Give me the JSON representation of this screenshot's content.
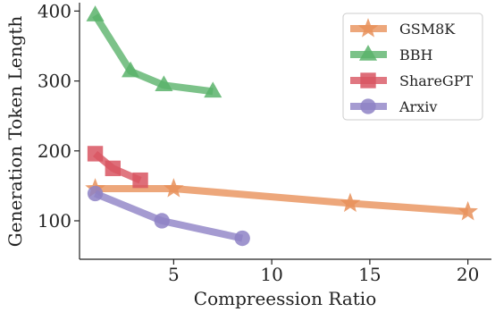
{
  "chart_data": {
    "type": "line",
    "xlabel": "Compreession Ratio",
    "ylabel": "Generation Token Length",
    "xlim": [
      0.2,
      21.2
    ],
    "ylim": [
      45,
      412
    ],
    "xticks": [
      5,
      10,
      15,
      20
    ],
    "yticks": [
      100,
      200,
      300,
      400
    ],
    "grid": false,
    "legend_position": "top-right",
    "series": [
      {
        "name": "GSM8K",
        "color": "#e8915a",
        "marker": "star",
        "x": [
          1.0,
          5.0,
          14.0,
          20.0
        ],
        "y": [
          146,
          146,
          125,
          113
        ]
      },
      {
        "name": "BBH",
        "color": "#5bb36b",
        "marker": "triangle",
        "x": [
          1.0,
          2.8,
          4.5,
          7.0
        ],
        "y": [
          394,
          314,
          294,
          285
        ]
      },
      {
        "name": "ShareGPT",
        "color": "#d85561",
        "marker": "square",
        "x": [
          1.0,
          1.9,
          3.3
        ],
        "y": [
          196,
          175,
          158
        ]
      },
      {
        "name": "Arxiv",
        "color": "#8e82c6",
        "marker": "circle",
        "x": [
          1.0,
          4.4,
          8.5
        ],
        "y": [
          139,
          100,
          75
        ]
      }
    ]
  }
}
